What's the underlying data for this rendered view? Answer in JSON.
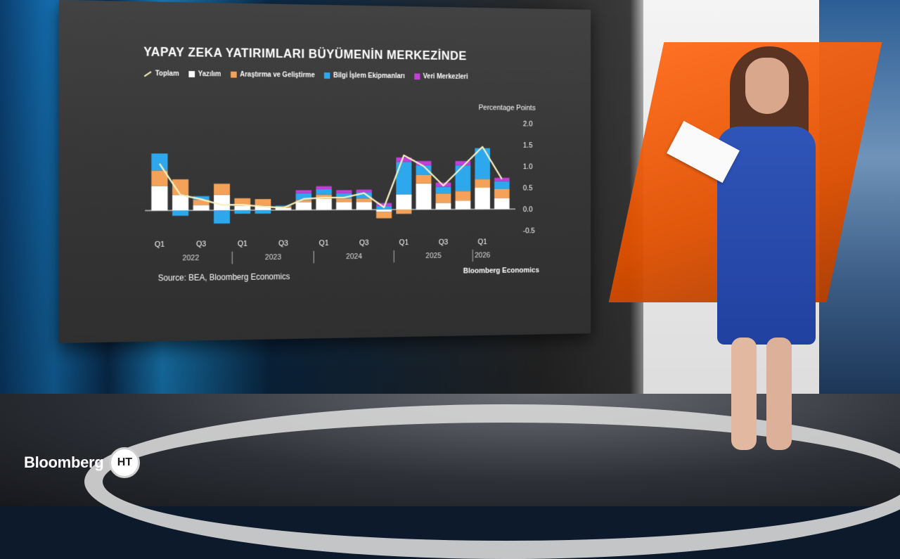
{
  "broadcast": {
    "channel_logo_text": "Bloomberg",
    "channel_logo_badge": "HT"
  },
  "chart_data": {
    "type": "bar",
    "stacked": true,
    "title": "YAPAY ZEKA YATIRIMLARI BÜYÜMENİN MERKEZİNDE",
    "ylabel": "Percentage Points",
    "ylim": [
      -0.5,
      2.0
    ],
    "yticks": [
      "2.0",
      "1.5",
      "1.0",
      "0.5",
      "0.0",
      "-0.5"
    ],
    "ytick_values": [
      2.0,
      1.5,
      1.0,
      0.5,
      0.0,
      -0.5
    ],
    "quarter_ticks": [
      "Q1",
      "Q3",
      "Q1",
      "Q3",
      "Q1",
      "Q3",
      "Q1",
      "Q3",
      "Q1"
    ],
    "quarter_tick_index": [
      0,
      2,
      4,
      6,
      8,
      10,
      12,
      14,
      16
    ],
    "years": [
      "2022",
      "2023",
      "2024",
      "2025",
      "2026"
    ],
    "year_center_index": [
      1.5,
      5.5,
      9.5,
      13.5,
      16
    ],
    "categories": [
      "2022 Q1",
      "2022 Q2",
      "2022 Q3",
      "2022 Q4",
      "2023 Q1",
      "2023 Q2",
      "2023 Q3",
      "2023 Q4",
      "2024 Q1",
      "2024 Q2",
      "2024 Q3",
      "2024 Q4",
      "2025 Q1",
      "2025 Q2",
      "2025 Q3",
      "2025 Q4",
      "2026 Q1",
      "2026 Q2"
    ],
    "legend": [
      "Toplam",
      "Yazılım",
      "Araştırma ve Geliştirme",
      "Bilgi İşlem Ekipmanları",
      "Veri Merkezleri"
    ],
    "series": [
      {
        "name": "Yazılım",
        "color": "#ffffff",
        "values": [
          0.55,
          0.35,
          0.12,
          0.35,
          0.1,
          0.1,
          0.05,
          0.18,
          0.25,
          0.18,
          0.18,
          -0.05,
          0.35,
          0.6,
          0.15,
          0.2,
          0.5,
          0.25
        ]
      },
      {
        "name": "Araştırma ve Geliştirme",
        "color": "#f4a25a",
        "values": [
          0.35,
          0.35,
          0.12,
          0.25,
          0.17,
          0.15,
          0.03,
          0.05,
          0.1,
          0.08,
          0.08,
          -0.15,
          -0.1,
          0.2,
          0.22,
          0.22,
          0.2,
          0.22
        ]
      },
      {
        "name": "Bilgi İşlem Ekipmanları",
        "color": "#2ea8ec",
        "values": [
          0.38,
          -0.12,
          0.08,
          -0.3,
          -0.08,
          -0.08,
          0.02,
          0.15,
          0.12,
          0.12,
          0.13,
          0.08,
          0.75,
          0.22,
          0.15,
          0.6,
          0.72,
          0.18
        ]
      },
      {
        "name": "Veri Merkezleri",
        "color": "#c23fd8",
        "values": [
          0.0,
          0.0,
          0.0,
          0.0,
          0.0,
          0.0,
          0.0,
          0.07,
          0.07,
          0.07,
          0.07,
          0.07,
          0.1,
          0.1,
          0.1,
          0.1,
          0.0,
          0.08
        ]
      }
    ],
    "total": {
      "name": "Toplam",
      "color": "#f5f0c0",
      "values": [
        1.05,
        0.35,
        0.25,
        0.12,
        0.12,
        0.08,
        0.05,
        0.25,
        0.28,
        0.28,
        0.38,
        0.05,
        1.25,
        1.0,
        0.55,
        1.0,
        1.45,
        0.7
      ]
    },
    "source": "Source: BEA, Bloomberg Economics",
    "brand": "Bloomberg Economics"
  }
}
